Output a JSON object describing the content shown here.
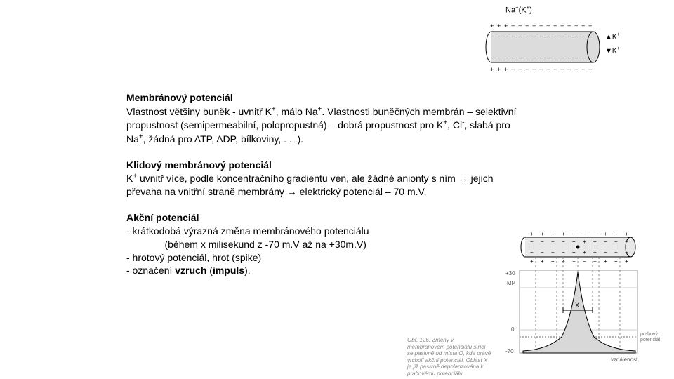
{
  "topDiagram": {
    "label_html": "Na<sup>+</sup>(K<sup>+</sup>)",
    "sideLabel1_html": "▲K<sup>+</sup>",
    "sideLabel2_html": "▼K<sup>+</sup>",
    "plus_color": "#000000",
    "minus_color": "#000000",
    "fill_color": "#dcdcdc",
    "stroke_color": "#000000"
  },
  "sections": [
    {
      "heading": "Membránový potenciál",
      "body_html": " Vlastnost většiny buněk - uvnitř K<sup>+</sup>, málo Na<sup>+</sup>. Vlastnosti buněčných membrán – selektivní propustnost (semipermeabilní, polopropustná) – dobrá propustnost pro K<sup>+</sup>, Cl<sup>-</sup>, slabá pro Na<sup>+</sup>, žádná pro ATP, ADP, bílkoviny, . . .)."
    },
    {
      "heading": "Klidový membránový potenciál",
      "body_html": " K<sup>+</sup> uvnitř více, podle koncentračního gradientu ven, ale žádné anionty s ním → jejich převaha na vnitřní straně membrány → elektrický potenciál – 70 m.V."
    },
    {
      "heading": "Akční potenciál",
      "body_html": "- krátkodobá výrazná změna membránového potenciálu<br>&nbsp;&nbsp;&nbsp;&nbsp;&nbsp;&nbsp;&nbsp;&nbsp;&nbsp;&nbsp;&nbsp;&nbsp;&nbsp;&nbsp;(během x milisekund z -70 m.V až na +30m.V)<br>- hrotový potenciál, hrot (spike)<br>- označení <b>vzruch</b> (<b>impuls</b>)."
    }
  ],
  "rightDiagram": {
    "grid_color": "#b0b0b0",
    "curve_color": "#000000",
    "fill_color": "#d8d8d8",
    "cylinder_stroke": "#000000",
    "yTicks": [
      "+30",
      "MP",
      "0",
      "-70"
    ],
    "xLabel": "vzdálenost",
    "threshold_label": "prahový potenciál",
    "x_marker": "X",
    "dash_color": "#888888"
  },
  "caption": "Obr. 126. Změny v membránovém potenciálu šířící se pasivně od místa O, kde právě vrcholí akční potenciál. Oblast X je již pasivně depolarizována k prahovému potenciálu."
}
